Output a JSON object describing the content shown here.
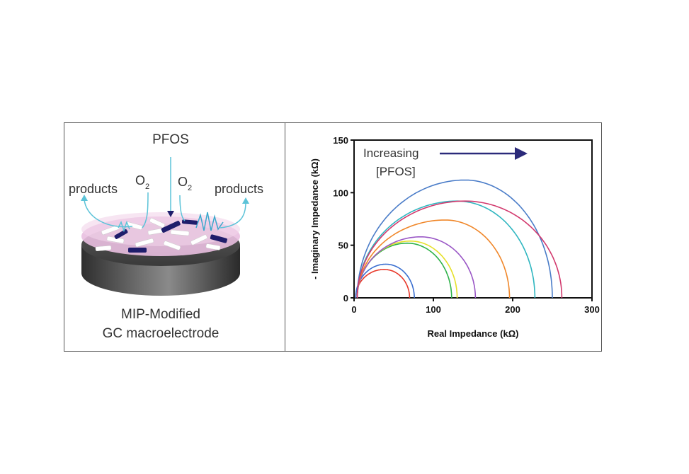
{
  "schematic": {
    "analyte_label": "PFOS",
    "oxygen_left": "O",
    "oxygen_left_sub": "2",
    "oxygen_right": "O",
    "oxygen_right_sub": "2",
    "products_left": "products",
    "products_right": "products",
    "caption_line1": "MIP-Modified",
    "caption_line2": "GC macroelectrode"
  },
  "colors": {
    "analyte_text": "#2b2a7a",
    "arrow_cyan": "#5cc3d8",
    "electrode_body": "#4a4a4a",
    "pink_film": "#e9bfe0",
    "template_dark": "#1f1d6b"
  },
  "chart_data": {
    "type": "line",
    "title": "",
    "xlabel": "Real  Impedance  (kΩ)",
    "ylabel": "- Imaginary Impedance  (kΩ)",
    "xlim": [
      0,
      300
    ],
    "ylim": [
      0,
      150
    ],
    "xticks": [
      "0",
      "100",
      "200",
      "300"
    ],
    "yticks": [
      "0",
      "50",
      "100",
      "150"
    ],
    "legend": "none",
    "grid": false,
    "annotation": {
      "line1": "Increasing",
      "line2": "[PFOS]",
      "arrow_color": "#2b2a7a"
    },
    "series": [
      {
        "color": "#e8392b",
        "x_start": 2,
        "x_end": 70,
        "peak_x": 38,
        "peak_y": 27
      },
      {
        "color": "#3b6fd0",
        "x_start": 2,
        "x_end": 76,
        "peak_x": 40,
        "peak_y": 32
      },
      {
        "color": "#2fb24a",
        "x_start": 4,
        "x_end": 123,
        "peak_x": 67,
        "peak_y": 52
      },
      {
        "color": "#e6e02a",
        "x_start": 4,
        "x_end": 130,
        "peak_x": 71,
        "peak_y": 54
      },
      {
        "color": "#9a57c6",
        "x_start": 4,
        "x_end": 153,
        "peak_x": 84,
        "peak_y": 58
      },
      {
        "color": "#f0872a",
        "x_start": 4,
        "x_end": 196,
        "peak_x": 115,
        "peak_y": 74
      },
      {
        "color": "#2fb6c0",
        "x_start": 4,
        "x_end": 228,
        "peak_x": 130,
        "peak_y": 92
      },
      {
        "color": "#4a7cc8",
        "x_start": 4,
        "x_end": 250,
        "peak_x": 140,
        "peak_y": 112
      },
      {
        "color": "#d23a6e",
        "x_start": 4,
        "x_end": 262,
        "peak_x": 140,
        "peak_y": 92
      }
    ]
  }
}
